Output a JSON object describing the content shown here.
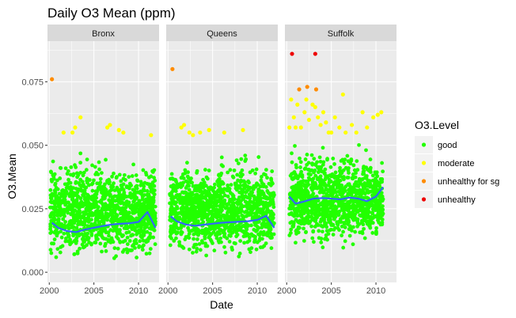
{
  "chart_data": {
    "type": "scatter",
    "title": "Daily O3 Mean (ppm)",
    "xlabel": "Date",
    "ylabel": "O3.Mean",
    "facets": [
      "Bronx",
      "Queens",
      "Suffolk"
    ],
    "xlim": [
      1999.8,
      2012.3
    ],
    "ylim": [
      -0.004,
      0.091
    ],
    "x_ticks": [
      2000,
      2005,
      2010
    ],
    "y_ticks": [
      0.0,
      0.025,
      0.05,
      0.075
    ],
    "y_tick_labels": [
      "0.000",
      "0.025",
      "0.050",
      "0.075"
    ],
    "legend": {
      "title": "O3.Level",
      "position": "right",
      "entries": [
        {
          "name": "good",
          "color": "#22ff00"
        },
        {
          "name": "moderate",
          "color": "#ffff00"
        },
        {
          "name": "unhealthy for sg",
          "color": "#ff8c00"
        },
        {
          "name": "unhealthy",
          "color": "#ee0000"
        }
      ]
    },
    "colors": {
      "panel_bg": "#ebebeb",
      "strip_bg": "#d9d9d9",
      "grid": "#ffffff",
      "smooth": "#3366ff"
    },
    "good_band": [
      {
        "facet": "Bronx",
        "x_range": [
          2000.1,
          2011.9
        ],
        "y_range": [
          0.002,
          0.05
        ]
      },
      {
        "facet": "Queens",
        "x_range": [
          2000.2,
          2011.9
        ],
        "y_range": [
          0.003,
          0.05
        ]
      },
      {
        "facet": "Suffolk",
        "x_range": [
          2000.3,
          2010.8
        ],
        "y_range": [
          0.008,
          0.053
        ]
      }
    ],
    "series": [
      {
        "name": "moderate",
        "facet": "Bronx",
        "points": [
          [
            2001.6,
            0.055
          ],
          [
            2002.6,
            0.055
          ],
          [
            2002.9,
            0.057
          ],
          [
            2003.5,
            0.061
          ],
          [
            2006.5,
            0.057
          ],
          [
            2006.8,
            0.058
          ],
          [
            2007.8,
            0.056
          ],
          [
            2008.3,
            0.055
          ],
          [
            2011.4,
            0.054
          ]
        ]
      },
      {
        "name": "unhealthy for sg",
        "facet": "Bronx",
        "points": [
          [
            2000.3,
            0.076
          ]
        ]
      },
      {
        "name": "moderate",
        "facet": "Queens",
        "points": [
          [
            2001.5,
            0.057
          ],
          [
            2001.8,
            0.058
          ],
          [
            2002.4,
            0.055
          ],
          [
            2002.8,
            0.054
          ],
          [
            2003.6,
            0.055
          ],
          [
            2004.6,
            0.056
          ],
          [
            2006.3,
            0.055
          ],
          [
            2008.4,
            0.056
          ]
        ]
      },
      {
        "name": "unhealthy for sg",
        "facet": "Queens",
        "points": [
          [
            2000.5,
            0.08
          ]
        ]
      },
      {
        "name": "moderate",
        "facet": "Suffolk",
        "points": [
          [
            2000.5,
            0.068
          ],
          [
            2000.8,
            0.061
          ],
          [
            2001.2,
            0.066
          ],
          [
            2001.6,
            0.057
          ],
          [
            2002.0,
            0.063
          ],
          [
            2002.2,
            0.068
          ],
          [
            2002.5,
            0.06
          ],
          [
            2002.9,
            0.066
          ],
          [
            2003.2,
            0.065
          ],
          [
            2003.5,
            0.061
          ],
          [
            2003.8,
            0.058
          ],
          [
            2004.1,
            0.063
          ],
          [
            2004.4,
            0.059
          ],
          [
            2005.0,
            0.055
          ],
          [
            2005.4,
            0.061
          ],
          [
            2005.9,
            0.057
          ],
          [
            2006.3,
            0.07
          ],
          [
            2006.6,
            0.055
          ],
          [
            2007.3,
            0.058
          ],
          [
            2007.8,
            0.055
          ],
          [
            2008.5,
            0.063
          ],
          [
            2009.0,
            0.057
          ],
          [
            2009.7,
            0.061
          ],
          [
            2010.2,
            0.062
          ],
          [
            2010.6,
            0.063
          ],
          [
            2000.3,
            0.057
          ],
          [
            2001.0,
            0.057
          ],
          [
            2004.7,
            0.055
          ]
        ]
      },
      {
        "name": "unhealthy for sg",
        "facet": "Suffolk",
        "points": [
          [
            2001.4,
            0.072
          ],
          [
            2002.3,
            0.073
          ],
          [
            2003.3,
            0.072
          ]
        ]
      },
      {
        "name": "unhealthy",
        "facet": "Suffolk",
        "points": [
          [
            2000.6,
            0.086
          ],
          [
            2003.2,
            0.086
          ]
        ]
      }
    ],
    "smooth": [
      {
        "facet": "Bronx",
        "x": [
          2000.3,
          2001,
          2002,
          2003,
          2004,
          2005,
          2006,
          2007,
          2008,
          2009,
          2010,
          2011,
          2011.9
        ],
        "y": [
          0.0195,
          0.0175,
          0.0162,
          0.0158,
          0.0168,
          0.0175,
          0.0182,
          0.0188,
          0.0191,
          0.0193,
          0.0198,
          0.0237,
          0.0175
        ]
      },
      {
        "facet": "Queens",
        "x": [
          2000.3,
          2001,
          2002,
          2003,
          2004,
          2005,
          2006,
          2007,
          2008,
          2009,
          2010,
          2011,
          2011.9
        ],
        "y": [
          0.022,
          0.02,
          0.0188,
          0.0183,
          0.0187,
          0.0191,
          0.0195,
          0.0197,
          0.0199,
          0.0201,
          0.0206,
          0.0222,
          0.0175
        ]
      },
      {
        "facet": "Suffolk",
        "x": [
          2000.3,
          2001,
          2002,
          2003,
          2004,
          2005,
          2006,
          2007,
          2008,
          2009,
          2010,
          2010.8
        ],
        "y": [
          0.0298,
          0.027,
          0.0279,
          0.029,
          0.0292,
          0.029,
          0.0287,
          0.0294,
          0.029,
          0.028,
          0.0298,
          0.0335
        ]
      }
    ]
  }
}
